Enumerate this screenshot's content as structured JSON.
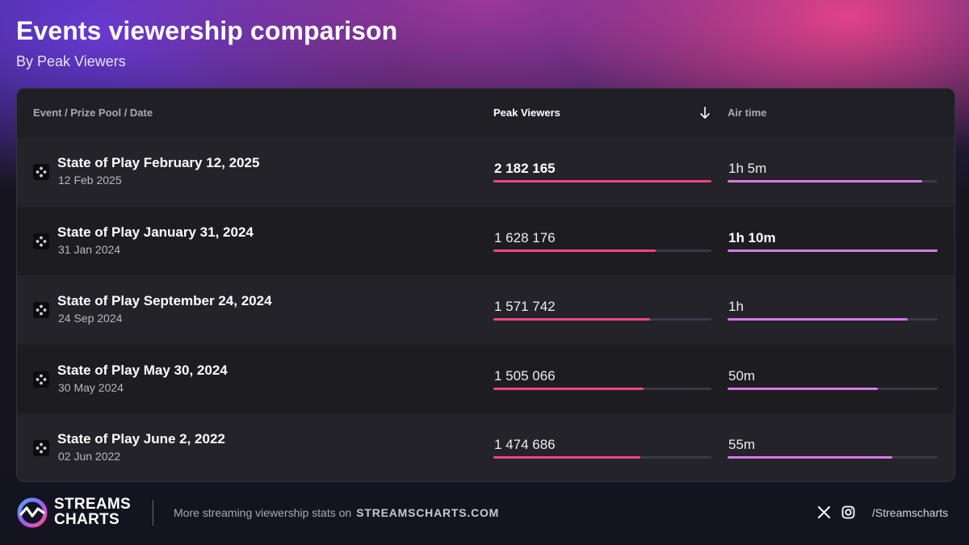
{
  "header": {
    "title": "Events viewership comparison",
    "subtitle": "By Peak Viewers"
  },
  "table": {
    "columns": {
      "event": "Event / Prize Pool / Date",
      "peak": "Peak Viewers",
      "air": "Air time"
    },
    "sort_icon": "arrow-down-icon",
    "row_icon": "playstation-icon"
  },
  "chart_data": {
    "type": "table",
    "sorted_by": "Peak Viewers",
    "sort_order": "descending",
    "rows": [
      {
        "event": "State of Play February 12, 2025",
        "date": "12 Feb 2025",
        "peak_viewers": 2182165,
        "peak_label": "2 182 165",
        "air_time_minutes": 65,
        "air_label": "1h 5m"
      },
      {
        "event": "State of Play January 31, 2024",
        "date": "31 Jan 2024",
        "peak_viewers": 1628176,
        "peak_label": "1 628 176",
        "air_time_minutes": 70,
        "air_label": "1h 10m"
      },
      {
        "event": "State of Play September 24, 2024",
        "date": "24 Sep 2024",
        "peak_viewers": 1571742,
        "peak_label": "1 571 742",
        "air_time_minutes": 60,
        "air_label": "1h"
      },
      {
        "event": "State of Play May 30, 2024",
        "date": "30 May 2024",
        "peak_viewers": 1505066,
        "peak_label": "1 505 066",
        "air_time_minutes": 50,
        "air_label": "50m"
      },
      {
        "event": "State of Play June 2, 2022",
        "date": "02 Jun 2022",
        "peak_viewers": 1474686,
        "peak_label": "1 474 686",
        "air_time_minutes": 55,
        "air_label": "55m"
      }
    ]
  },
  "footer": {
    "brand_line1": "STREAMS",
    "brand_line2": "CHARTS",
    "tagline": "More streaming viewership stats on",
    "site": "STREAMSCHARTS.COM",
    "handle": "/Streamscharts",
    "icons": [
      "streamscharts-logo-icon",
      "x-icon",
      "instagram-icon"
    ]
  },
  "colors": {
    "peak_bar": "#f0467e",
    "air_bar": "#d77ae8",
    "track": "#3a3a44",
    "panel": "#1c1c22"
  }
}
